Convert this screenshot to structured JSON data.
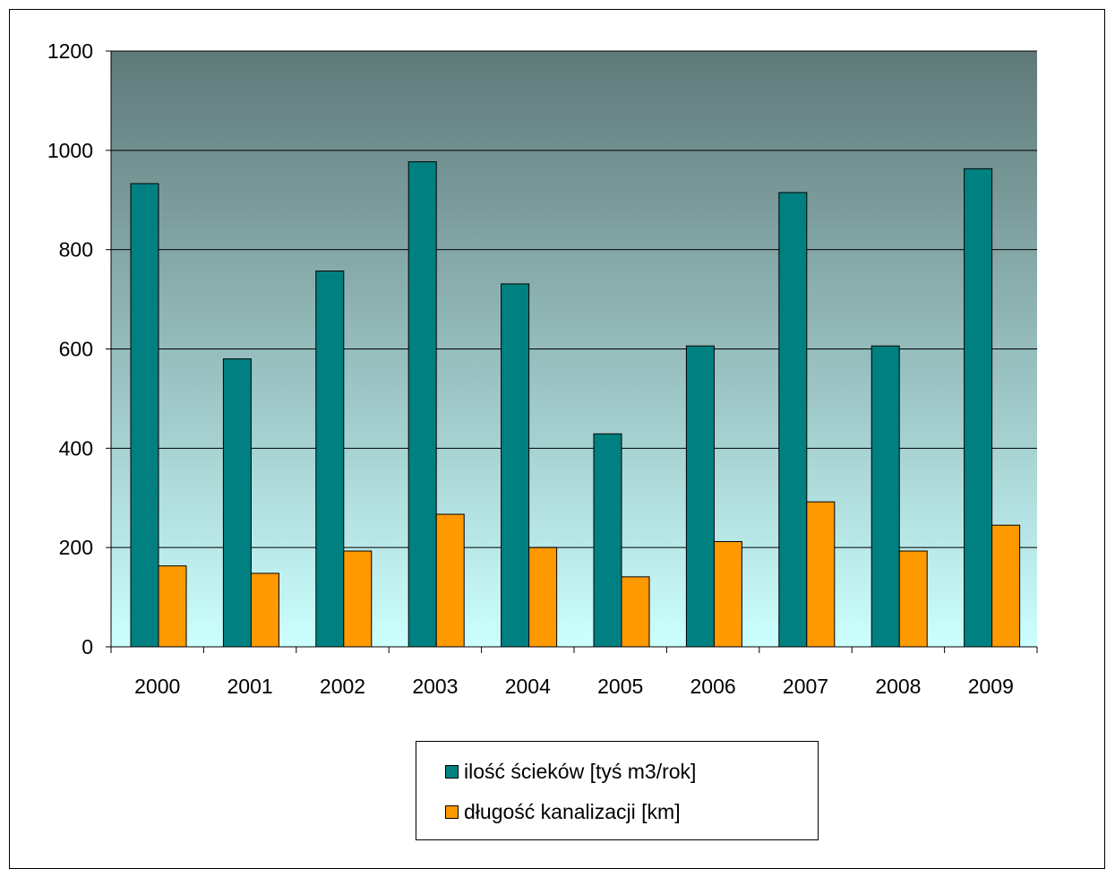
{
  "chart_data": {
    "type": "bar",
    "categories": [
      "2000",
      "2001",
      "2002",
      "2003",
      "2004",
      "2005",
      "2006",
      "2007",
      "2008",
      "2009"
    ],
    "series": [
      {
        "name": "ilość ścieków [tyś m3/rok]",
        "color": "#008080",
        "values": [
          933,
          580,
          757,
          977,
          731,
          429,
          606,
          915,
          606,
          963
        ]
      },
      {
        "name": "długość kanalizacji [km]",
        "color": "#FF9900",
        "values": [
          163,
          148,
          193,
          267,
          200,
          141,
          212,
          292,
          193,
          245
        ]
      }
    ],
    "y_ticks": [
      "0",
      "200",
      "400",
      "600",
      "800",
      "1000",
      "1200"
    ],
    "ylim": [
      0,
      1200
    ],
    "grid": true,
    "legend_position": "bottom",
    "plot_background": {
      "top_color": "#5F7979",
      "bottom_color": "#CCFFFF"
    }
  }
}
